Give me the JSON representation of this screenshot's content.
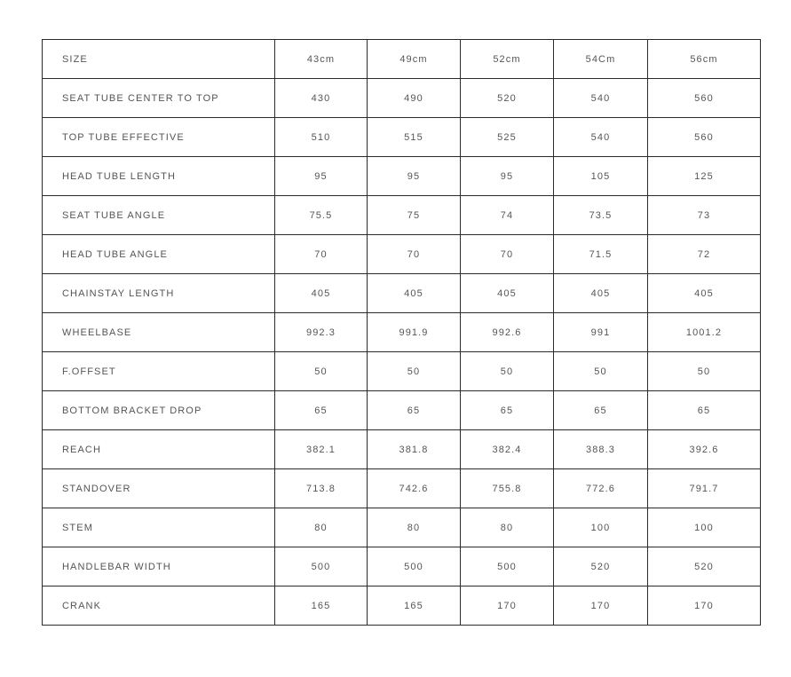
{
  "table": {
    "header": [
      "SIZE",
      "43cm",
      "49cm",
      "52cm",
      "54Cm",
      "56cm"
    ],
    "rows": [
      [
        "SEAT TUBE CENTER TO TOP",
        "430",
        "490",
        "520",
        "540",
        "560"
      ],
      [
        "TOP TUBE EFFECTIVE",
        "510",
        "515",
        "525",
        "540",
        "560"
      ],
      [
        "HEAD TUBE LENGTH",
        "95",
        "95",
        "95",
        "105",
        "125"
      ],
      [
        "SEAT TUBE ANGLE",
        "75.5",
        "75",
        "74",
        "73.5",
        "73"
      ],
      [
        "HEAD TUBE ANGLE",
        "70",
        "70",
        "70",
        "71.5",
        "72"
      ],
      [
        "CHAINSTAY LENGTH",
        "405",
        "405",
        "405",
        "405",
        "405"
      ],
      [
        "WHEELBASE",
        "992.3",
        "991.9",
        "992.6",
        "991",
        "1001.2"
      ],
      [
        "F.OFFSET",
        "50",
        "50",
        "50",
        "50",
        "50"
      ],
      [
        "BOTTOM BRACKET DROP",
        "65",
        "65",
        "65",
        "65",
        "65"
      ],
      [
        "REACH",
        "382.1",
        "381.8",
        "382.4",
        "388.3",
        "392.6"
      ],
      [
        "STANDOVER",
        "713.8",
        "742.6",
        "755.8",
        "772.6",
        "791.7"
      ],
      [
        "STEM",
        "80",
        "80",
        "80",
        "100",
        "100"
      ],
      [
        "HANDLEBAR WIDTH",
        "500",
        "500",
        "500",
        "520",
        "520"
      ],
      [
        "CRANK",
        "165",
        "165",
        "170",
        "170",
        "170"
      ]
    ]
  }
}
